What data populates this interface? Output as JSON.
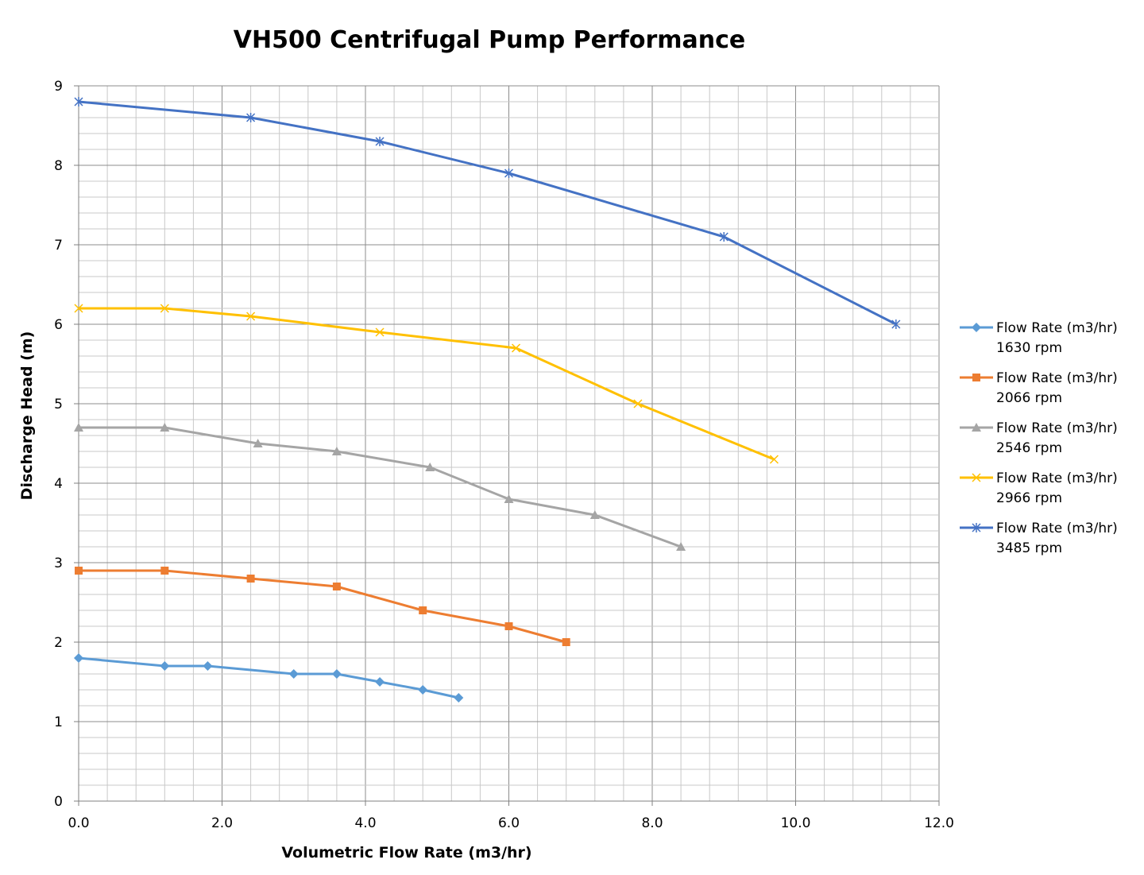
{
  "chart_data": {
    "type": "line",
    "title": "VH500 Centrifugal Pump Performance",
    "xlabel": "Volumetric Flow Rate (m3/hr)",
    "ylabel": "Discharge Head (m)",
    "xlim": [
      0,
      12
    ],
    "ylim": [
      0,
      9
    ],
    "x_ticks": [
      "0.0",
      "2.0",
      "4.0",
      "6.0",
      "8.0",
      "10.0",
      "12.0"
    ],
    "y_ticks": [
      "0",
      "1",
      "2",
      "3",
      "4",
      "5",
      "6",
      "7",
      "8",
      "9"
    ],
    "grid": true,
    "legend_position": "right",
    "series": [
      {
        "name": "Flow Rate (m3/hr)",
        "name2": "1630 rpm",
        "color": "#5B9BD5",
        "marker": "diamond",
        "x": [
          0,
          1.2,
          1.8,
          3.0,
          3.6,
          4.2,
          4.8,
          5.3
        ],
        "y": [
          1.8,
          1.7,
          1.7,
          1.6,
          1.6,
          1.5,
          1.4,
          1.3
        ]
      },
      {
        "name": "Flow Rate (m3/hr)",
        "name2": "2066 rpm",
        "color": "#ED7D31",
        "marker": "square",
        "x": [
          0,
          1.2,
          2.4,
          3.6,
          4.8,
          6.0,
          6.8
        ],
        "y": [
          2.9,
          2.9,
          2.8,
          2.7,
          2.4,
          2.2,
          2.0
        ]
      },
      {
        "name": "Flow Rate (m3/hr)",
        "name2": "2546 rpm",
        "color": "#A5A5A5",
        "marker": "triangle",
        "x": [
          0,
          1.2,
          2.5,
          3.6,
          4.9,
          6.0,
          7.2,
          8.4
        ],
        "y": [
          4.7,
          4.7,
          4.5,
          4.4,
          4.2,
          3.8,
          3.6,
          3.2
        ]
      },
      {
        "name": "Flow Rate (m3/hr)",
        "name2": "2966 rpm",
        "color": "#FFC000",
        "marker": "x",
        "x": [
          0,
          1.2,
          2.4,
          4.2,
          6.1,
          7.8,
          9.7
        ],
        "y": [
          6.2,
          6.2,
          6.1,
          5.9,
          5.7,
          5.0,
          4.3
        ]
      },
      {
        "name": "Flow Rate (m3/hr)",
        "name2": "3485 rpm",
        "color": "#4472C4",
        "marker": "star",
        "x": [
          0,
          2.4,
          4.2,
          6.0,
          9.0,
          11.4
        ],
        "y": [
          8.8,
          8.6,
          8.3,
          7.9,
          7.1,
          6.0
        ]
      }
    ]
  }
}
